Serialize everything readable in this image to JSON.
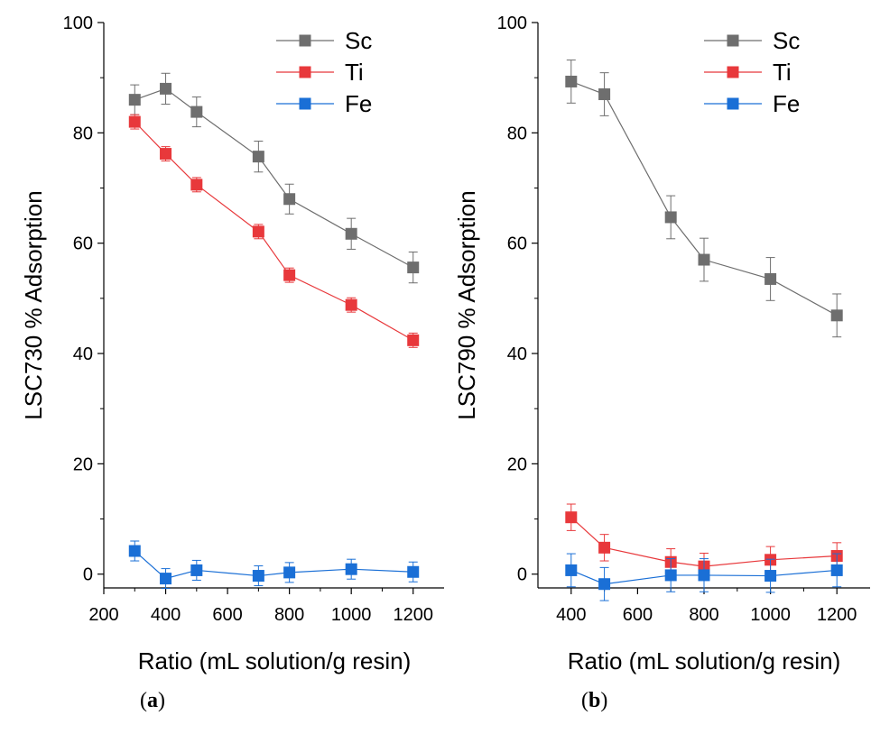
{
  "chart_data": [
    {
      "type": "line",
      "panel_label": "a",
      "xlabel": "Ratio (mL solution/g resin)",
      "ylabel": "LSC730 % Adsorption",
      "xlim": [
        200,
        1300
      ],
      "ylim": [
        -2.5,
        100
      ],
      "xticks": [
        200,
        400,
        600,
        800,
        1000,
        1200
      ],
      "yticks": [
        0,
        20,
        40,
        60,
        80,
        100
      ],
      "grid": false,
      "legend_position": "top-right",
      "series": [
        {
          "name": "Sc",
          "color": "#6e6e6e",
          "x": [
            300,
            400,
            500,
            700,
            800,
            1000,
            1200
          ],
          "y": [
            86,
            88,
            83.8,
            75.7,
            68,
            61.7,
            55.6
          ],
          "err": [
            2.7,
            2.8,
            2.7,
            2.8,
            2.7,
            2.8,
            2.8
          ]
        },
        {
          "name": "Ti",
          "color": "#e8383b",
          "x": [
            300,
            400,
            500,
            700,
            800,
            1000,
            1200
          ],
          "y": [
            82,
            76.2,
            70.6,
            62.1,
            54.2,
            48.8,
            42.4
          ],
          "err": [
            1.3,
            1.3,
            1.3,
            1.3,
            1.3,
            1.3,
            1.3
          ]
        },
        {
          "name": "Fe",
          "color": "#1a6fd6",
          "x": [
            300,
            400,
            500,
            700,
            800,
            1000,
            1200
          ],
          "y": [
            4.2,
            -0.8,
            0.7,
            -0.3,
            0.3,
            0.9,
            0.4
          ],
          "err": [
            1.8,
            1.8,
            1.8,
            1.8,
            1.8,
            1.8,
            1.8
          ]
        }
      ]
    },
    {
      "type": "line",
      "panel_label": "b",
      "xlabel": "Ratio (mL solution/g resin)",
      "ylabel": "LSC790 % Adsorption",
      "xlim": [
        300,
        1300
      ],
      "ylim": [
        -2.5,
        100
      ],
      "xticks": [
        400,
        600,
        800,
        1000,
        1200
      ],
      "yticks": [
        0,
        20,
        40,
        60,
        80,
        100
      ],
      "grid": false,
      "legend_position": "top-right",
      "series": [
        {
          "name": "Sc",
          "color": "#6e6e6e",
          "x": [
            400,
            500,
            700,
            800,
            1000,
            1200
          ],
          "y": [
            89.3,
            87,
            64.7,
            57,
            53.5,
            46.9
          ],
          "err": [
            3.9,
            3.9,
            3.9,
            3.9,
            3.9,
            3.9
          ]
        },
        {
          "name": "Ti",
          "color": "#e8383b",
          "x": [
            400,
            500,
            700,
            800,
            1000,
            1200
          ],
          "y": [
            10.3,
            4.8,
            2.2,
            1.4,
            2.6,
            3.3
          ],
          "err": [
            2.4,
            2.4,
            2.4,
            2.4,
            2.4,
            2.4
          ]
        },
        {
          "name": "Fe",
          "color": "#1a6fd6",
          "x": [
            400,
            500,
            700,
            800,
            1000,
            1200
          ],
          "y": [
            0.7,
            -1.8,
            -0.2,
            -0.2,
            -0.3,
            0.7
          ],
          "err": [
            3,
            3,
            3,
            3,
            3,
            3
          ]
        }
      ]
    }
  ],
  "captions": [
    "(a)",
    "(b)"
  ]
}
